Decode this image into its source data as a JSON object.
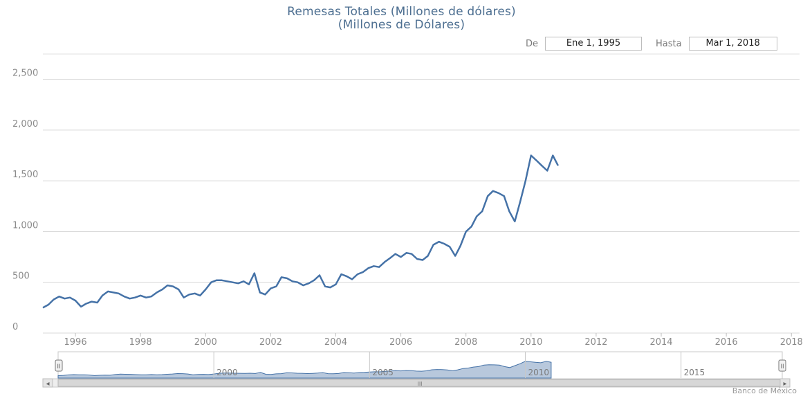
{
  "header": {
    "title": "Remesas Totales (Millones de dólares)",
    "subtitle": "(Millones de Dólares)"
  },
  "range_selector": {
    "from_label": "De",
    "from_value": "Ene 1, 1995",
    "to_label": "Hasta",
    "to_value": "Mar 1, 2018"
  },
  "navigator": {
    "year_labels": [
      "2000",
      "2005",
      "2010",
      "2015"
    ],
    "scroll_grip": "III",
    "left_arrow": "◂",
    "right_arrow": "▸",
    "handle_left": "II",
    "handle_right": "II"
  },
  "credits": "Banco de México",
  "colors": {
    "series": "#4572a7",
    "navigator_fill": "#b8c8dc",
    "grid": "#d8d8d8",
    "title": "#4d6f91"
  },
  "chart_data": {
    "type": "line",
    "title": "Remesas Totales (Millones de dólares)",
    "subtitle": "(Millones de Dólares)",
    "xlabel": "",
    "ylabel": "",
    "xlim": [
      1995.0,
      2018.25
    ],
    "ylim": [
      0,
      2750
    ],
    "yticks": [
      0,
      500,
      1000,
      1500,
      2000,
      2500
    ],
    "ytick_labels": [
      "0",
      "500",
      "1,000",
      "1,500",
      "2,000",
      "2,500"
    ],
    "xticks": [
      1996,
      1998,
      2000,
      2002,
      2004,
      2006,
      2008,
      2010,
      2012,
      2014,
      2016,
      2018
    ],
    "grid": true,
    "legend": "none",
    "series": [
      {
        "points": [
          [
            1995.0,
            250
          ],
          [
            1995.17,
            280
          ],
          [
            1995.33,
            330
          ],
          [
            1995.5,
            360
          ],
          [
            1995.67,
            340
          ],
          [
            1995.83,
            350
          ],
          [
            1996.0,
            320
          ],
          [
            1996.17,
            260
          ],
          [
            1996.33,
            290
          ],
          [
            1996.5,
            310
          ],
          [
            1996.67,
            300
          ],
          [
            1996.83,
            370
          ],
          [
            1997.0,
            410
          ],
          [
            1997.17,
            400
          ],
          [
            1997.33,
            390
          ],
          [
            1997.5,
            360
          ],
          [
            1997.67,
            340
          ],
          [
            1997.83,
            350
          ],
          [
            1998.0,
            370
          ],
          [
            1998.17,
            350
          ],
          [
            1998.33,
            360
          ],
          [
            1998.5,
            400
          ],
          [
            1998.67,
            430
          ],
          [
            1998.83,
            470
          ],
          [
            1999.0,
            460
          ],
          [
            1999.17,
            430
          ],
          [
            1999.33,
            350
          ],
          [
            1999.5,
            380
          ],
          [
            1999.67,
            390
          ],
          [
            1999.83,
            370
          ],
          [
            2000.0,
            430
          ],
          [
            2000.17,
            500
          ],
          [
            2000.33,
            520
          ],
          [
            2000.5,
            520
          ],
          [
            2000.67,
            510
          ],
          [
            2000.83,
            500
          ],
          [
            2001.0,
            490
          ],
          [
            2001.17,
            510
          ],
          [
            2001.33,
            480
          ],
          [
            2001.5,
            590
          ],
          [
            2001.67,
            400
          ],
          [
            2001.83,
            380
          ],
          [
            2002.0,
            440
          ],
          [
            2002.17,
            460
          ],
          [
            2002.33,
            550
          ],
          [
            2002.5,
            540
          ],
          [
            2002.67,
            510
          ],
          [
            2002.83,
            500
          ],
          [
            2003.0,
            470
          ],
          [
            2003.17,
            490
          ],
          [
            2003.33,
            520
          ],
          [
            2003.5,
            570
          ],
          [
            2003.67,
            460
          ],
          [
            2003.83,
            450
          ],
          [
            2004.0,
            480
          ],
          [
            2004.17,
            580
          ],
          [
            2004.33,
            560
          ],
          [
            2004.5,
            530
          ],
          [
            2004.67,
            580
          ],
          [
            2004.83,
            600
          ],
          [
            2005.0,
            640
          ],
          [
            2005.17,
            660
          ],
          [
            2005.33,
            650
          ],
          [
            2005.5,
            700
          ],
          [
            2005.67,
            740
          ],
          [
            2005.83,
            780
          ],
          [
            2006.0,
            750
          ],
          [
            2006.17,
            790
          ],
          [
            2006.33,
            780
          ],
          [
            2006.5,
            730
          ],
          [
            2006.67,
            720
          ],
          [
            2006.83,
            760
          ],
          [
            2007.0,
            870
          ],
          [
            2007.17,
            900
          ],
          [
            2007.33,
            880
          ],
          [
            2007.5,
            850
          ],
          [
            2007.67,
            760
          ],
          [
            2007.83,
            860
          ],
          [
            2008.0,
            1000
          ],
          [
            2008.17,
            1050
          ],
          [
            2008.33,
            1150
          ],
          [
            2008.5,
            1200
          ],
          [
            2008.67,
            1350
          ],
          [
            2008.83,
            1400
          ],
          [
            2009.0,
            1380
          ],
          [
            2009.17,
            1350
          ],
          [
            2009.33,
            1200
          ],
          [
            2009.5,
            1100
          ],
          [
            2009.67,
            1300
          ],
          [
            2009.83,
            1500
          ],
          [
            2010.0,
            1750
          ],
          [
            2010.17,
            1700
          ],
          [
            2010.33,
            1650
          ],
          [
            2010.5,
            1600
          ],
          [
            2010.67,
            1750
          ],
          [
            2010.83,
            1650
          ]
        ]
      }
    ]
  }
}
